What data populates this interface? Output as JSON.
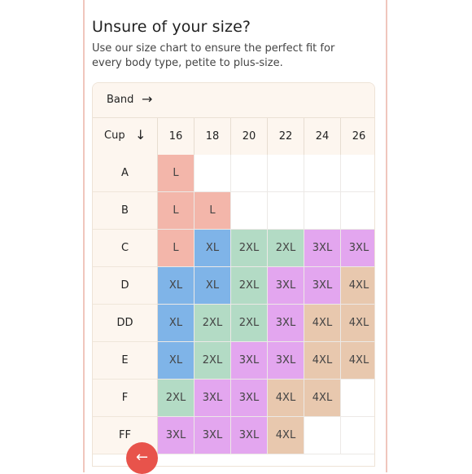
{
  "heading": {
    "title": "Unsure of your size?",
    "description": "Use our size chart to ensure the perfect fit for every body type, petite to plus-size."
  },
  "size_chart": {
    "band_label": "Band",
    "band_arrow": "→",
    "cup_label": "Cup",
    "cup_arrow": "↓",
    "bands": [
      "16",
      "18",
      "20",
      "22",
      "24",
      "26"
    ],
    "rows": [
      {
        "cup": "A",
        "sizes": [
          "L",
          "",
          "",
          "",
          "",
          ""
        ]
      },
      {
        "cup": "B",
        "sizes": [
          "L",
          "L",
          "",
          "",
          "",
          ""
        ]
      },
      {
        "cup": "C",
        "sizes": [
          "L",
          "XL",
          "2XL",
          "2XL",
          "3XL",
          "3XL"
        ]
      },
      {
        "cup": "D",
        "sizes": [
          "XL",
          "XL",
          "2XL",
          "3XL",
          "3XL",
          "4XL"
        ]
      },
      {
        "cup": "DD",
        "sizes": [
          "XL",
          "2XL",
          "2XL",
          "3XL",
          "4XL",
          "4XL"
        ]
      },
      {
        "cup": "E",
        "sizes": [
          "XL",
          "2XL",
          "3XL",
          "3XL",
          "4XL",
          "4XL"
        ]
      },
      {
        "cup": "F",
        "sizes": [
          "2XL",
          "3XL",
          "3XL",
          "4XL",
          "4XL",
          ""
        ]
      },
      {
        "cup": "FF",
        "sizes": [
          "3XL",
          "3XL",
          "3XL",
          "4XL",
          "",
          ""
        ]
      }
    ],
    "size_colors": {
      "L": "#f3b6aa",
      "XL": "#7fb4e8",
      "2XL": "#b3dbc5",
      "3XL": "#e3a6ef",
      "4XL": "#e8c8ae"
    }
  },
  "back_button": {
    "icon": "arrow-left-icon",
    "glyph": "←"
  }
}
